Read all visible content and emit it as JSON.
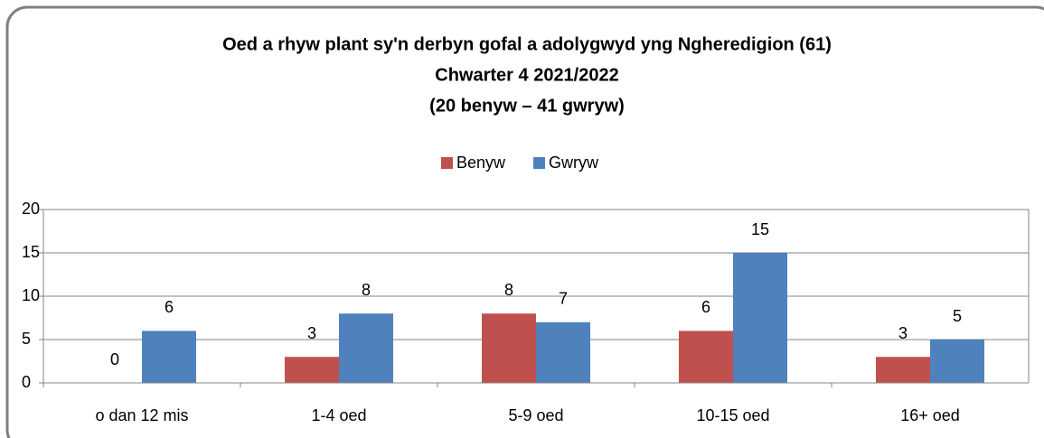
{
  "chart_data": {
    "type": "bar",
    "title": [
      "Oed a rhyw plant sy'n derbyn gofal a adolygwyd yng Ngheredigion (61)",
      "Chwarter 4  2021/2022",
      "(20 benyw – 41 gwryw)"
    ],
    "categories": [
      "o dan 12 mis",
      "1-4 oed",
      "5-9 oed",
      "10-15 oed",
      "16+ oed"
    ],
    "series": [
      {
        "name": "Benyw",
        "color": "#c0504d",
        "values": [
          0,
          3,
          8,
          6,
          3
        ]
      },
      {
        "name": "Gwryw",
        "color": "#4f81bd",
        "values": [
          6,
          8,
          7,
          15,
          5
        ]
      }
    ],
    "ylim": [
      0,
      20
    ],
    "yticks": [
      0,
      5,
      10,
      15,
      20
    ],
    "grid": true,
    "legend": "top"
  }
}
